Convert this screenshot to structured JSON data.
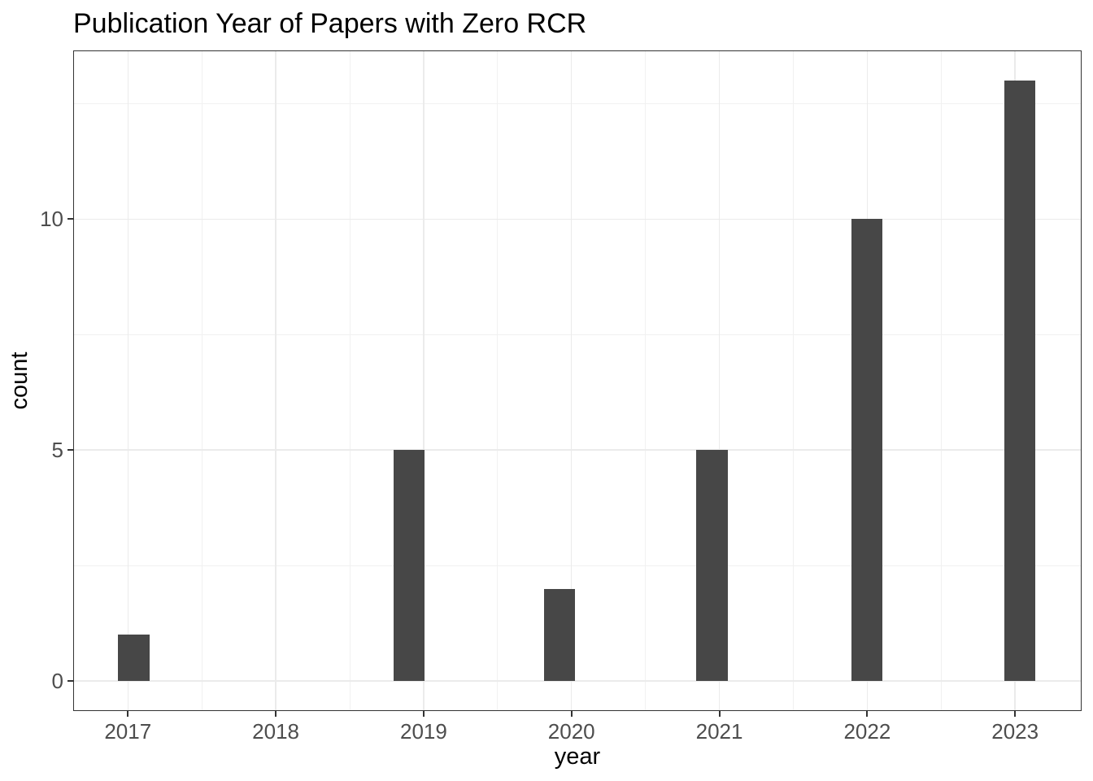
{
  "chart_data": {
    "type": "bar",
    "variant": "histogram",
    "title": "Publication Year of Papers with Zero RCR",
    "xlabel": "year",
    "ylabel": "count",
    "categories": [
      2017,
      2018,
      2019,
      2020,
      2021,
      2022,
      2023
    ],
    "values": [
      1,
      0,
      5,
      2,
      5,
      10,
      13
    ],
    "bars": [
      {
        "year": 2017,
        "count": 1,
        "bin_center": 2017.04
      },
      {
        "year": 2019,
        "count": 5,
        "bin_center": 2018.9
      },
      {
        "year": 2020,
        "count": 2,
        "bin_center": 2019.92
      },
      {
        "year": 2021,
        "count": 5,
        "bin_center": 2020.95
      },
      {
        "year": 2022,
        "count": 10,
        "bin_center": 2022.0
      },
      {
        "year": 2023,
        "count": 13,
        "bin_center": 2023.03
      }
    ],
    "bar_width_years": 0.21,
    "x_ticks": [
      2017,
      2018,
      2019,
      2020,
      2021,
      2022,
      2023
    ],
    "x_minor": [
      2017.5,
      2018.5,
      2019.5,
      2020.5,
      2021.5,
      2022.5
    ],
    "y_ticks": [
      0,
      5,
      10
    ],
    "y_minor": [
      2.5,
      7.5,
      12.5
    ],
    "x_range": [
      2016.63,
      2023.45
    ],
    "y_range": [
      -0.65,
      13.65
    ],
    "grid": true,
    "legend": false,
    "colors": {
      "bar": "#474747",
      "grid_major": "#EBEBEB",
      "grid_minor": "#F1F1F1",
      "panel_border": "#333333",
      "tick_mark": "#333333",
      "axis_text": "#4D4D4D",
      "title_text": "#000000",
      "background": "#FFFFFF"
    }
  }
}
